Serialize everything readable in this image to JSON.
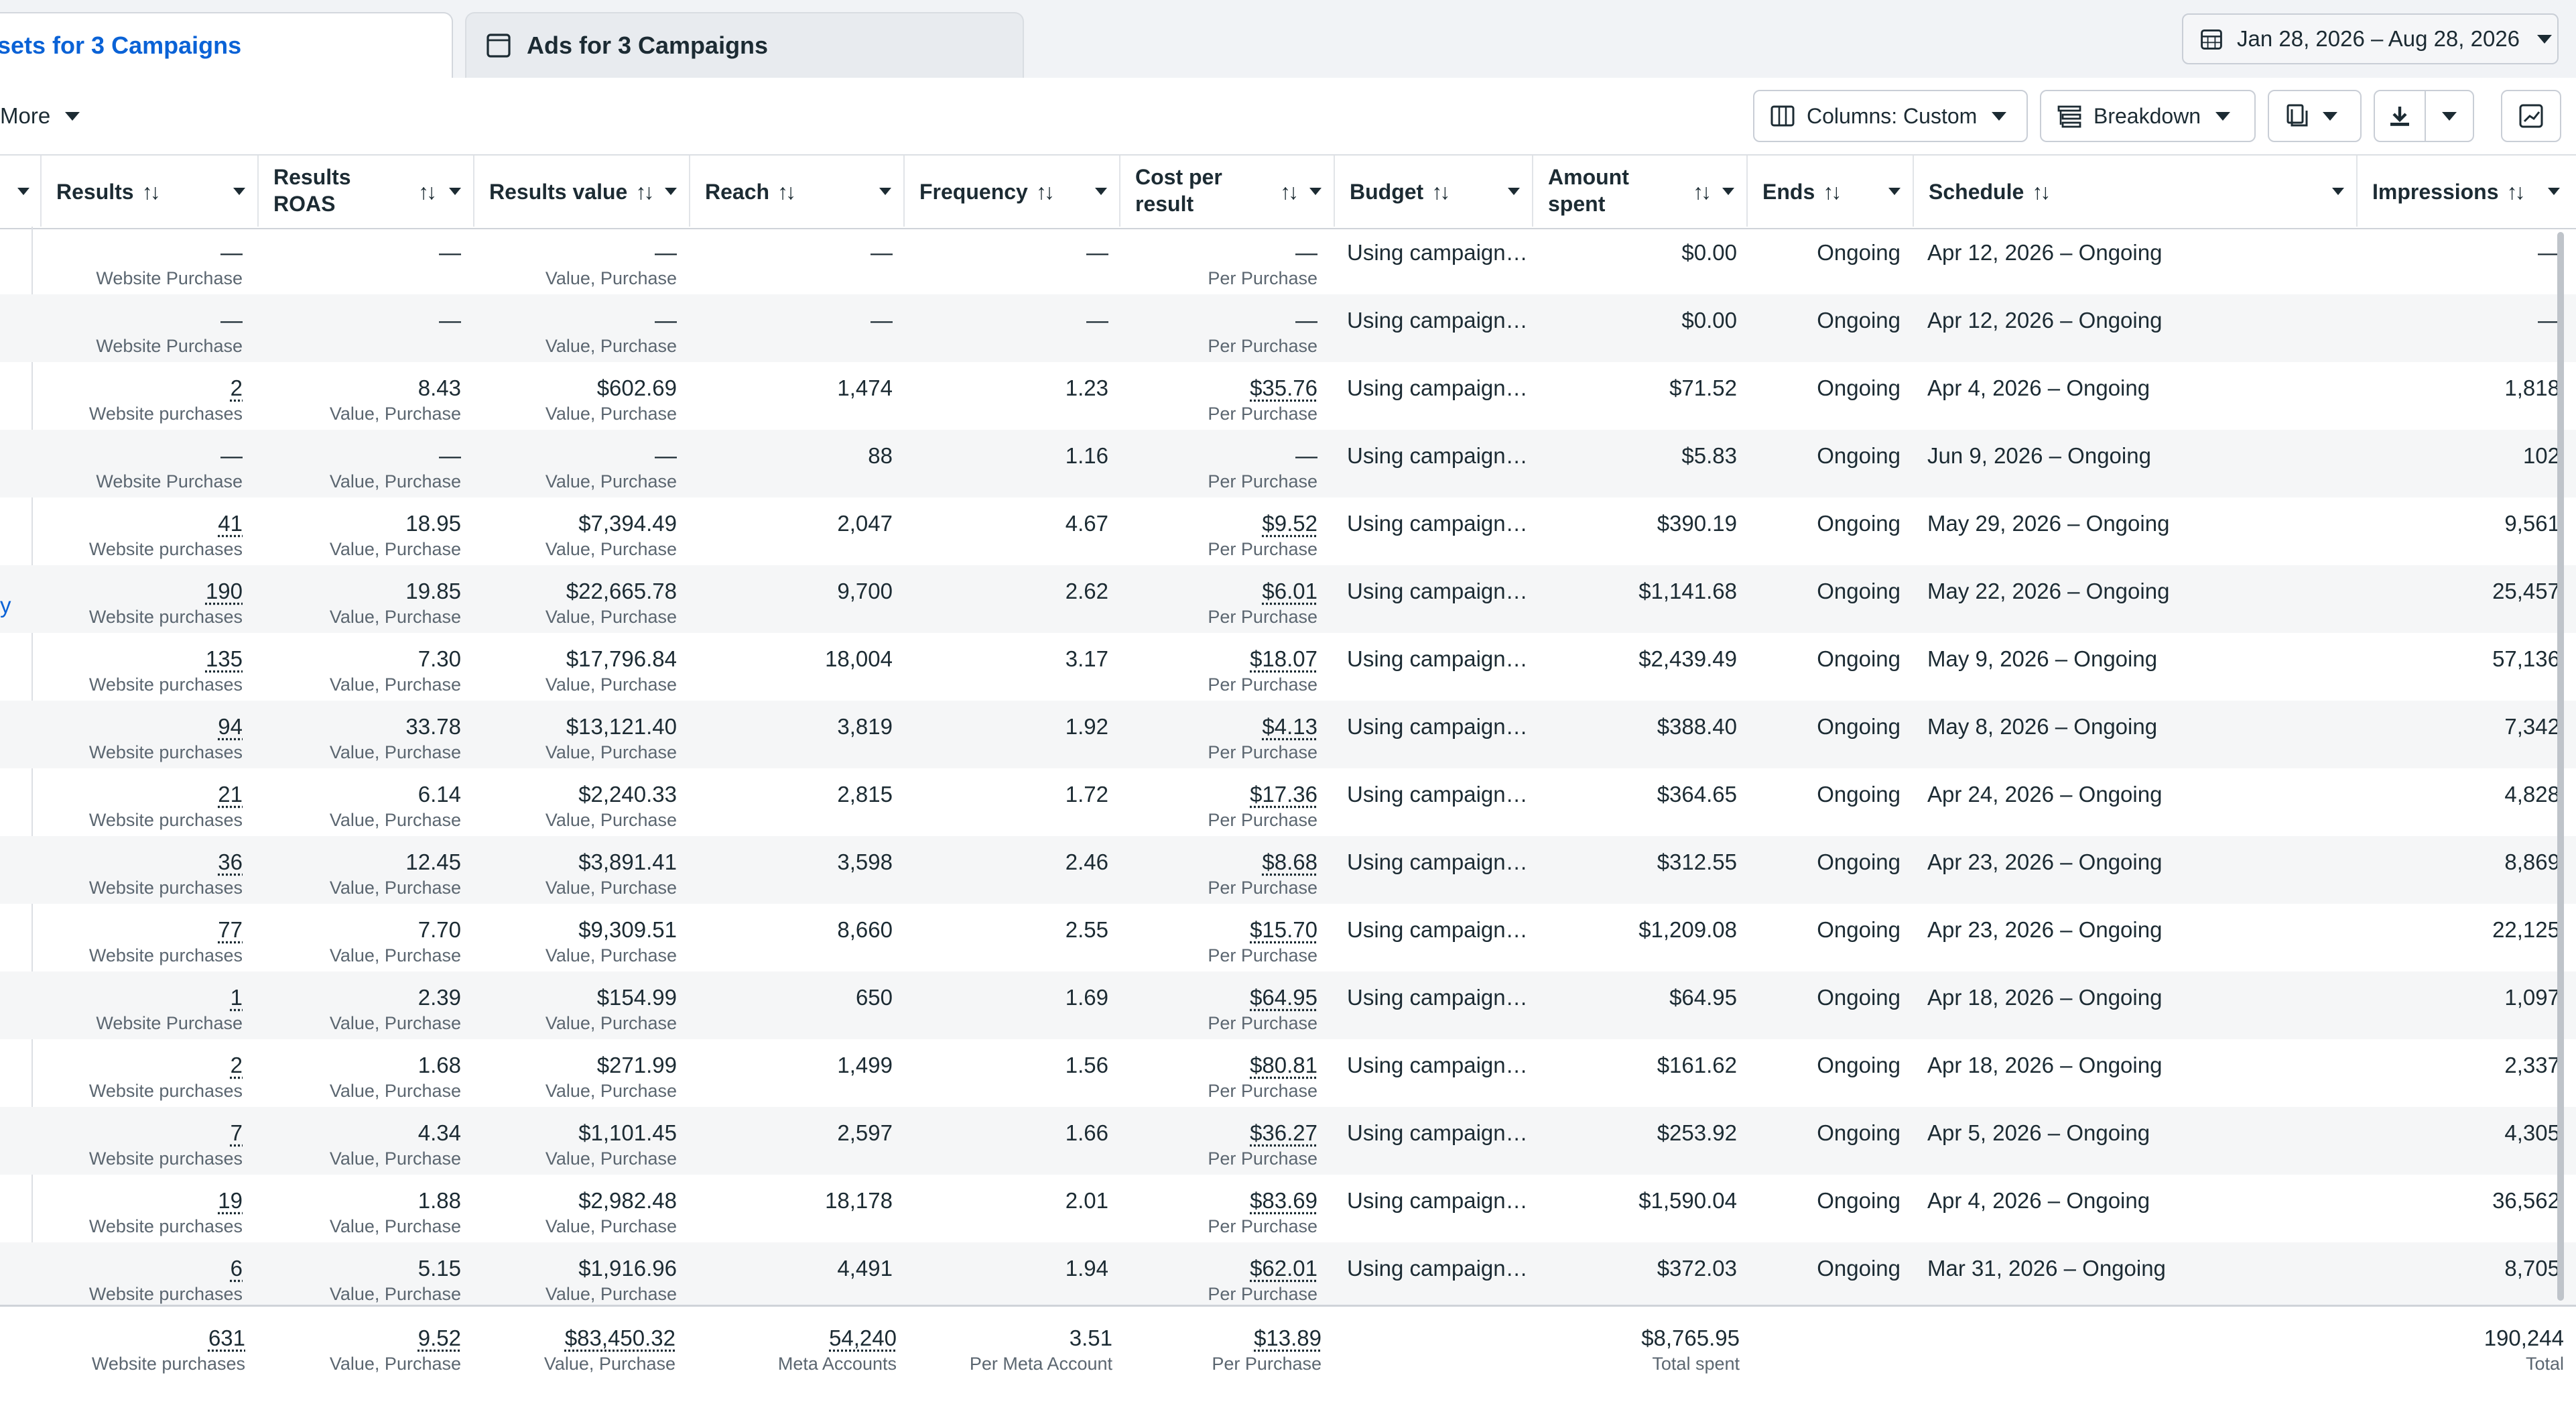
{
  "tabs": {
    "active_label": "sets for 3 Campaigns",
    "ads_label": "Ads for 3 Campaigns"
  },
  "date_range": "Jan 28, 2026 – Aug 28, 2026",
  "toolbar": {
    "more_label": "More",
    "columns_label": "Columns: Custom",
    "breakdown_label": "Breakdown"
  },
  "columns": {
    "results": "Results",
    "results_roas_1": "Results",
    "results_roas_2": "ROAS",
    "results_value": "Results value",
    "reach": "Reach",
    "frequency": "Frequency",
    "cost_1": "Cost per",
    "cost_2": "result",
    "budget": "Budget",
    "amount_1": "Amount",
    "amount_2": "spent",
    "ends": "Ends",
    "schedule": "Schedule",
    "impressions": "Impressions",
    "sort_glyph": "↑↓"
  },
  "partial_link": "y",
  "rows": [
    {
      "results": "—",
      "results_sub": "Website Purchase",
      "roas": "—",
      "roas_sub": "",
      "value": "—",
      "value_sub": "Value, Purchase",
      "reach": "—",
      "freq": "—",
      "cost": "—",
      "cost_sub": "Per Purchase",
      "budget": "Using campaign…",
      "spent": "$0.00",
      "ends": "Ongoing",
      "schedule": "Apr 12, 2026 – Ongoing",
      "impr": "—"
    },
    {
      "results": "—",
      "results_sub": "Website Purchase",
      "roas": "—",
      "roas_sub": "",
      "value": "—",
      "value_sub": "Value, Purchase",
      "reach": "—",
      "freq": "—",
      "cost": "—",
      "cost_sub": "Per Purchase",
      "budget": "Using campaign…",
      "spent": "$0.00",
      "ends": "Ongoing",
      "schedule": "Apr 12, 2026 – Ongoing",
      "impr": "—"
    },
    {
      "results": "2",
      "results_sub": "Website purchases",
      "roas": "8.43",
      "roas_sub": "Value, Purchase",
      "value": "$602.69",
      "value_sub": "Value, Purchase",
      "reach": "1,474",
      "freq": "1.23",
      "cost": "$35.76",
      "cost_sub": "Per Purchase",
      "budget": "Using campaign…",
      "spent": "$71.52",
      "ends": "Ongoing",
      "schedule": "Apr 4, 2026 – Ongoing",
      "impr": "1,818"
    },
    {
      "results": "—",
      "results_sub": "Website Purchase",
      "roas": "—",
      "roas_sub": "Value, Purchase",
      "value": "—",
      "value_sub": "Value, Purchase",
      "reach": "88",
      "freq": "1.16",
      "cost": "—",
      "cost_sub": "Per Purchase",
      "budget": "Using campaign…",
      "spent": "$5.83",
      "ends": "Ongoing",
      "schedule": "Jun 9, 2026 – Ongoing",
      "impr": "102"
    },
    {
      "results": "41",
      "results_sub": "Website purchases",
      "roas": "18.95",
      "roas_sub": "Value, Purchase",
      "value": "$7,394.49",
      "value_sub": "Value, Purchase",
      "reach": "2,047",
      "freq": "4.67",
      "cost": "$9.52",
      "cost_sub": "Per Purchase",
      "budget": "Using campaign…",
      "spent": "$390.19",
      "ends": "Ongoing",
      "schedule": "May 29, 2026 – Ongoing",
      "impr": "9,561"
    },
    {
      "results": "190",
      "results_sub": "Website purchases",
      "roas": "19.85",
      "roas_sub": "Value, Purchase",
      "value": "$22,665.78",
      "value_sub": "Value, Purchase",
      "reach": "9,700",
      "freq": "2.62",
      "cost": "$6.01",
      "cost_sub": "Per Purchase",
      "budget": "Using campaign…",
      "spent": "$1,141.68",
      "ends": "Ongoing",
      "schedule": "May 22, 2026 – Ongoing",
      "impr": "25,457"
    },
    {
      "results": "135",
      "results_sub": "Website purchases",
      "roas": "7.30",
      "roas_sub": "Value, Purchase",
      "value": "$17,796.84",
      "value_sub": "Value, Purchase",
      "reach": "18,004",
      "freq": "3.17",
      "cost": "$18.07",
      "cost_sub": "Per Purchase",
      "budget": "Using campaign…",
      "spent": "$2,439.49",
      "ends": "Ongoing",
      "schedule": "May 9, 2026 – Ongoing",
      "impr": "57,136"
    },
    {
      "results": "94",
      "results_sub": "Website purchases",
      "roas": "33.78",
      "roas_sub": "Value, Purchase",
      "value": "$13,121.40",
      "value_sub": "Value, Purchase",
      "reach": "3,819",
      "freq": "1.92",
      "cost": "$4.13",
      "cost_sub": "Per Purchase",
      "budget": "Using campaign…",
      "spent": "$388.40",
      "ends": "Ongoing",
      "schedule": "May 8, 2026 – Ongoing",
      "impr": "7,342"
    },
    {
      "results": "21",
      "results_sub": "Website purchases",
      "roas": "6.14",
      "roas_sub": "Value, Purchase",
      "value": "$2,240.33",
      "value_sub": "Value, Purchase",
      "reach": "2,815",
      "freq": "1.72",
      "cost": "$17.36",
      "cost_sub": "Per Purchase",
      "budget": "Using campaign…",
      "spent": "$364.65",
      "ends": "Ongoing",
      "schedule": "Apr 24, 2026 – Ongoing",
      "impr": "4,828"
    },
    {
      "results": "36",
      "results_sub": "Website purchases",
      "roas": "12.45",
      "roas_sub": "Value, Purchase",
      "value": "$3,891.41",
      "value_sub": "Value, Purchase",
      "reach": "3,598",
      "freq": "2.46",
      "cost": "$8.68",
      "cost_sub": "Per Purchase",
      "budget": "Using campaign…",
      "spent": "$312.55",
      "ends": "Ongoing",
      "schedule": "Apr 23, 2026 – Ongoing",
      "impr": "8,869"
    },
    {
      "results": "77",
      "results_sub": "Website purchases",
      "roas": "7.70",
      "roas_sub": "Value, Purchase",
      "value": "$9,309.51",
      "value_sub": "Value, Purchase",
      "reach": "8,660",
      "freq": "2.55",
      "cost": "$15.70",
      "cost_sub": "Per Purchase",
      "budget": "Using campaign…",
      "spent": "$1,209.08",
      "ends": "Ongoing",
      "schedule": "Apr 23, 2026 – Ongoing",
      "impr": "22,125"
    },
    {
      "results": "1",
      "results_sub": "Website Purchase",
      "roas": "2.39",
      "roas_sub": "Value, Purchase",
      "value": "$154.99",
      "value_sub": "Value, Purchase",
      "reach": "650",
      "freq": "1.69",
      "cost": "$64.95",
      "cost_sub": "Per Purchase",
      "budget": "Using campaign…",
      "spent": "$64.95",
      "ends": "Ongoing",
      "schedule": "Apr 18, 2026 – Ongoing",
      "impr": "1,097"
    },
    {
      "results": "2",
      "results_sub": "Website purchases",
      "roas": "1.68",
      "roas_sub": "Value, Purchase",
      "value": "$271.99",
      "value_sub": "Value, Purchase",
      "reach": "1,499",
      "freq": "1.56",
      "cost": "$80.81",
      "cost_sub": "Per Purchase",
      "budget": "Using campaign…",
      "spent": "$161.62",
      "ends": "Ongoing",
      "schedule": "Apr 18, 2026 – Ongoing",
      "impr": "2,337"
    },
    {
      "results": "7",
      "results_sub": "Website purchases",
      "roas": "4.34",
      "roas_sub": "Value, Purchase",
      "value": "$1,101.45",
      "value_sub": "Value, Purchase",
      "reach": "2,597",
      "freq": "1.66",
      "cost": "$36.27",
      "cost_sub": "Per Purchase",
      "budget": "Using campaign…",
      "spent": "$253.92",
      "ends": "Ongoing",
      "schedule": "Apr 5, 2026 – Ongoing",
      "impr": "4,305"
    },
    {
      "results": "19",
      "results_sub": "Website purchases",
      "roas": "1.88",
      "roas_sub": "Value, Purchase",
      "value": "$2,982.48",
      "value_sub": "Value, Purchase",
      "reach": "18,178",
      "freq": "2.01",
      "cost": "$83.69",
      "cost_sub": "Per Purchase",
      "budget": "Using campaign…",
      "spent": "$1,590.04",
      "ends": "Ongoing",
      "schedule": "Apr 4, 2026 – Ongoing",
      "impr": "36,562"
    },
    {
      "results": "6",
      "results_sub": "Website purchases",
      "roas": "5.15",
      "roas_sub": "Value, Purchase",
      "value": "$1,916.96",
      "value_sub": "Value, Purchase",
      "reach": "4,491",
      "freq": "1.94",
      "cost": "$62.01",
      "cost_sub": "Per Purchase",
      "budget": "Using campaign…",
      "spent": "$372.03",
      "ends": "Ongoing",
      "schedule": "Mar 31, 2026 – Ongoing",
      "impr": "8,705"
    }
  ],
  "totals": {
    "results": "631",
    "results_sub": "Website purchases",
    "roas": "9.52",
    "roas_sub": "Value, Purchase",
    "value": "$83,450.32",
    "value_sub": "Value, Purchase",
    "reach": "54,240",
    "reach_sub": "Meta Accounts",
    "freq": "3.51",
    "freq_sub": "Per Meta Account",
    "cost": "$13.89",
    "cost_sub": "Per Purchase",
    "spent": "$8,765.95",
    "spent_sub": "Total spent",
    "impr": "190,244",
    "impr_sub": "Total"
  },
  "colors": {
    "accent": "#0a62d6",
    "text": "#1c2b33",
    "muted": "#5b6670",
    "row_alt": "#f5f6f7"
  }
}
